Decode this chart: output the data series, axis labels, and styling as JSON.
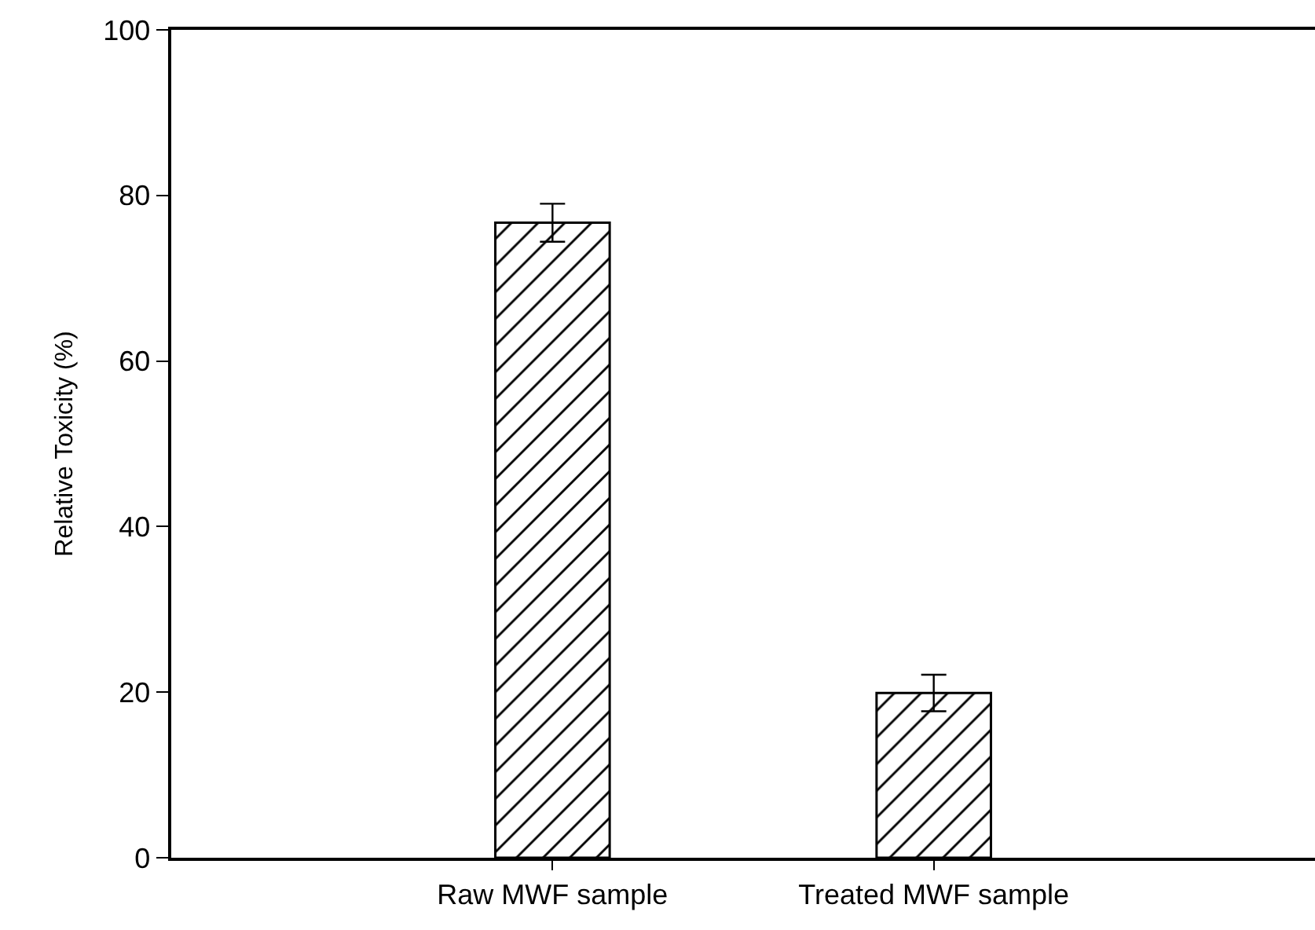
{
  "chart_data": {
    "type": "bar",
    "ylabel": "Relative Toxicity (%)",
    "categories": [
      "Raw MWF sample",
      "Treated MWF sample"
    ],
    "values": [
      76.7,
      19.9
    ],
    "errors": [
      2.3,
      2.2
    ],
    "color": "#000000",
    "ylim": [
      0,
      100
    ],
    "yticks": [
      0,
      20,
      40,
      60,
      80,
      100
    ]
  }
}
